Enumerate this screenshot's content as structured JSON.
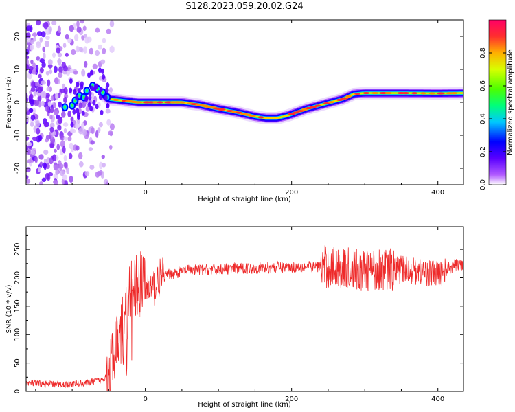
{
  "figure": {
    "title": "S128.2023.059.20.02.G24"
  },
  "chart_data": [
    {
      "type": "heatmap",
      "xlabel": "Height of straight line (km)",
      "ylabel": "Frequency (Hz)",
      "xlim": [
        -163,
        435
      ],
      "ylim": [
        -25,
        25
      ],
      "xticks": [
        0,
        200,
        400
      ],
      "yticks": [
        -20,
        -10,
        0,
        10,
        20
      ],
      "colorbar": {
        "label": "Normalized spectral amplitude",
        "range": [
          0,
          1
        ],
        "ticks": [
          "0.0",
          "0.2",
          "0.4",
          "0.6",
          "0.8"
        ],
        "colors": [
          "#ffffff",
          "#b15bff",
          "#5a00ff",
          "#0000ff",
          "#00c8ff",
          "#00ff7a",
          "#4cff00",
          "#d8ff00",
          "#ffb000",
          "#ff2e2e",
          "#ff0066"
        ]
      },
      "ridge": {
        "x": [
          -150,
          -115,
          -100,
          -85,
          -70,
          -60,
          -50,
          -30,
          -10,
          20,
          50,
          75,
          100,
          125,
          150,
          165,
          180,
          195,
          220,
          245,
          270,
          285,
          300,
          350,
          400,
          435
        ],
        "y": [
          -1.5,
          -1,
          0,
          3,
          5,
          3,
          1,
          0.5,
          0,
          0,
          0,
          -0.8,
          -2,
          -3,
          -4.3,
          -4.8,
          -4.8,
          -4,
          -2,
          -0.5,
          1,
          2.5,
          2.8,
          2.8,
          2.7,
          2.8
        ]
      }
    },
    {
      "type": "line",
      "xlabel": "Height of straight line (km)",
      "ylabel": "SNR (10 * v/v)",
      "xlim": [
        -163,
        435
      ],
      "ylim": [
        0,
        290
      ],
      "xticks": [
        0,
        200,
        400
      ],
      "yticks": [
        0,
        50,
        100,
        150,
        200,
        250
      ],
      "color": "#ee2a2a",
      "series": [
        {
          "x": [
            -163,
            -140,
            -110,
            -80,
            -60,
            -50,
            -45,
            -40,
            -35,
            -30,
            -25,
            -20,
            -10,
            0,
            10,
            20,
            30,
            40,
            60,
            100,
            150,
            200,
            240,
            260,
            280,
            300,
            320,
            340,
            360,
            380,
            400,
            420,
            435
          ],
          "y": [
            15,
            13,
            12,
            15,
            20,
            30,
            55,
            80,
            95,
            120,
            150,
            175,
            190,
            185,
            180,
            200,
            205,
            208,
            213,
            215,
            217,
            219,
            220,
            218,
            215,
            212,
            216,
            214,
            215,
            210,
            205,
            220,
            225
          ]
        }
      ]
    }
  ]
}
